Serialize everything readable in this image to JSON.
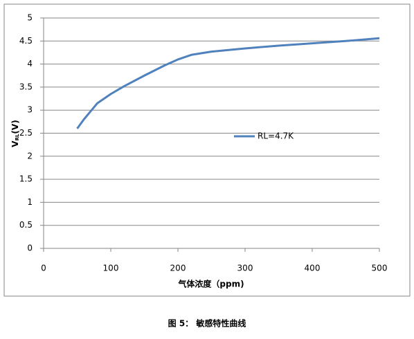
{
  "chart_data": {
    "type": "line",
    "y_label": {
      "main": "V",
      "sub": "RL",
      "unit": "(V)"
    },
    "x_label": "气体浓度（ppm)",
    "x": [
      50,
      60,
      80,
      100,
      120,
      150,
      180,
      200,
      220,
      250,
      300,
      350,
      400,
      450,
      500
    ],
    "series": [
      {
        "name": "RL=4.7K",
        "color": "#4f81bd",
        "values": [
          2.6,
          2.8,
          3.15,
          3.35,
          3.52,
          3.75,
          3.97,
          4.1,
          4.2,
          4.27,
          4.34,
          4.4,
          4.45,
          4.5,
          4.56
        ]
      }
    ],
    "xlim": [
      0,
      500
    ],
    "xticks": [
      0,
      100,
      200,
      300,
      400,
      500
    ],
    "ylim": [
      0,
      5
    ],
    "yticks": [
      0,
      0.5,
      1,
      1.5,
      2,
      2.5,
      3,
      3.5,
      4,
      4.5,
      5
    ],
    "grid": true,
    "legend": "right"
  },
  "caption": "图 5：  敏感特性曲线"
}
